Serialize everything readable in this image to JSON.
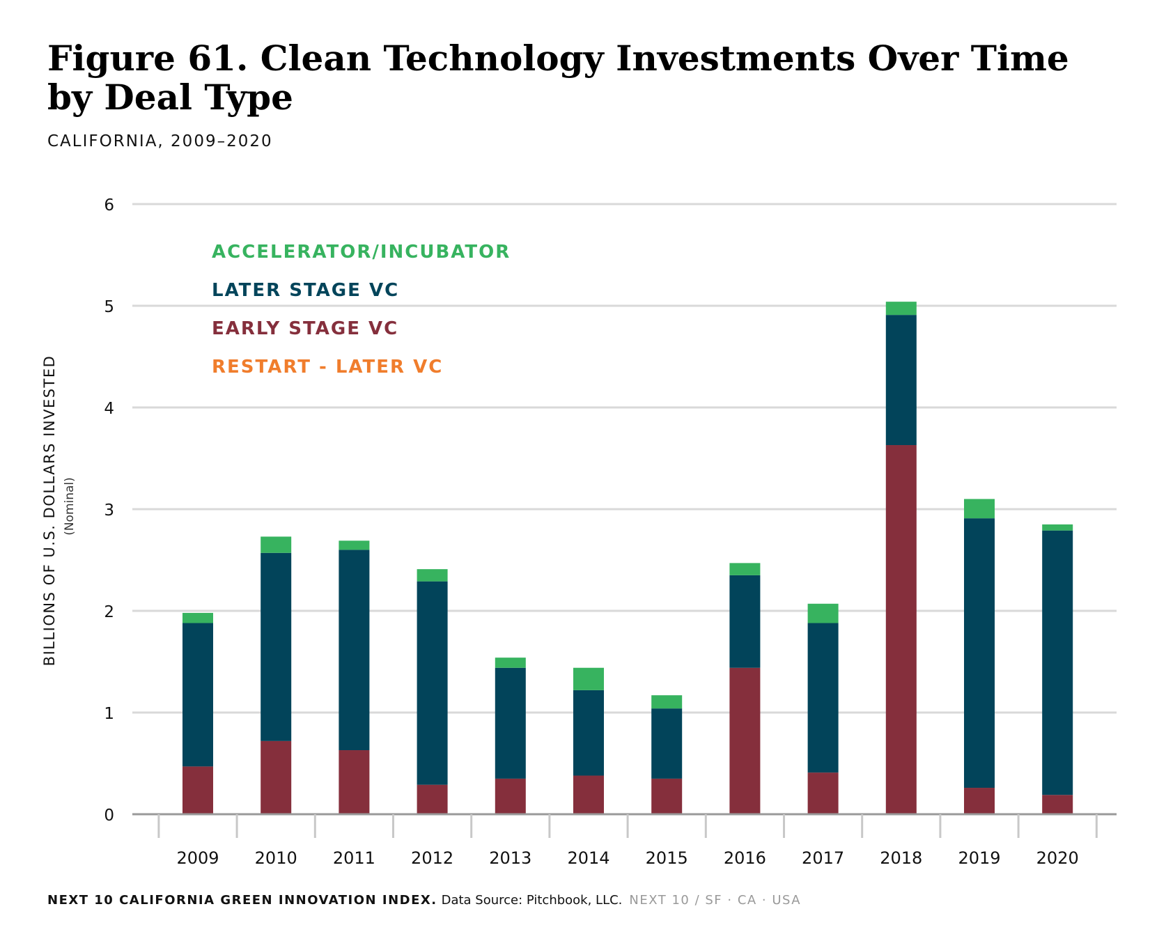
{
  "title": "Figure 61. Clean Technology Investments Over Time by Deal Type",
  "subtitle": "CALIFORNIA, 2009–2020",
  "footer": {
    "lead": "NEXT 10 CALIFORNIA GREEN INNOVATION INDEX.",
    "source": "Data Source: Pitchbook, LLC.",
    "org": "NEXT 10  /  SF · CA · USA"
  },
  "chart_data": {
    "type": "bar",
    "stacked": true,
    "categories": [
      "2009",
      "2010",
      "2011",
      "2012",
      "2013",
      "2014",
      "2015",
      "2016",
      "2017",
      "2018",
      "2019",
      "2020"
    ],
    "ylabel": "BILLIONS OF U.S. DOLLARS INVESTED",
    "ylabel_sub": "(Nominal)",
    "ylim": [
      0,
      6
    ],
    "yticks": [
      0,
      1,
      2,
      3,
      4,
      5,
      6
    ],
    "grid": true,
    "legend_position": "top-left",
    "series": [
      {
        "name": "EARLY STAGE VC",
        "color": "#852f3c",
        "values": [
          0.47,
          0.72,
          0.63,
          0.29,
          0.35,
          0.38,
          0.35,
          1.44,
          0.41,
          3.63,
          0.26,
          0.19
        ]
      },
      {
        "name": "LATER STAGE VC",
        "color": "#02445a",
        "values": [
          1.41,
          1.85,
          1.97,
          2.0,
          1.09,
          0.84,
          0.69,
          0.91,
          1.47,
          1.28,
          2.65,
          2.6
        ]
      },
      {
        "name": "ACCELERATOR/INCUBATOR",
        "color": "#37b35f",
        "values": [
          0.1,
          0.16,
          0.09,
          0.12,
          0.1,
          0.22,
          0.13,
          0.12,
          0.19,
          0.13,
          0.19,
          0.06
        ]
      },
      {
        "name": "RESTART - LATER VC",
        "color": "#f07d2c",
        "values": [
          0,
          0,
          0,
          0,
          0,
          0,
          0,
          0,
          0,
          0,
          0,
          0
        ]
      }
    ],
    "legend_order": [
      "ACCELERATOR/INCUBATOR",
      "LATER STAGE VC",
      "EARLY STAGE VC",
      "RESTART - LATER VC"
    ]
  }
}
